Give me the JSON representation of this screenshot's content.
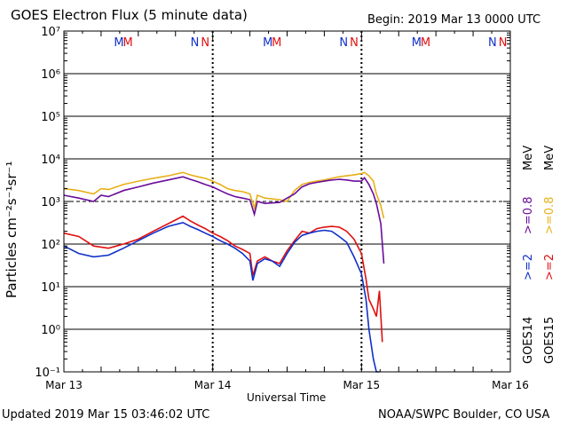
{
  "header": {
    "title": "GOES Electron Flux (5 minute data)",
    "begin": "Begin: 2019 Mar 13 0000 UTC"
  },
  "footer": {
    "updated": "Updated 2019 Mar 15 03:46:02 UTC",
    "credit": "NOAA/SWPC Boulder, CO USA"
  },
  "legend": {
    "goes14": "GOES14",
    "goes15": "GOES15",
    "goes14_2mev": ">=2",
    "goes15_2mev": ">=2",
    "goes14_08mev": ">=0.8",
    "goes15_08mev": ">=0.8",
    "unit": "MeV",
    "unit2": "MeV"
  },
  "colors": {
    "goes14_2": "#1030c8",
    "goes15_2": "#e01010",
    "goes14_08": "#6a0c9a",
    "goes15_08": "#e8b018",
    "axis": "#000000"
  },
  "chart_data": {
    "type": "line",
    "title": "GOES Electron Flux (5 minute data)",
    "xlabel": "Universal Time",
    "ylabel": "Particles cm⁻²s⁻¹sr⁻¹",
    "yscale": "log",
    "ylim": [
      0.1,
      10000000
    ],
    "xlim_days": [
      0,
      3
    ],
    "xticks": [
      "Mar 13",
      "Mar 14",
      "Mar 15",
      "Mar 16"
    ],
    "yticks": [
      "10⁷",
      "10⁶",
      "10⁵",
      "10⁴",
      "10³",
      "10²",
      "10¹",
      "10⁰",
      "10⁻¹"
    ],
    "alert_threshold": 1000,
    "markers": [
      {
        "label": "M",
        "series": "goes14",
        "day": 0.37
      },
      {
        "label": "M",
        "series": "goes15",
        "day": 0.43
      },
      {
        "label": "N",
        "series": "goes14",
        "day": 0.88
      },
      {
        "label": "N",
        "series": "goes15",
        "day": 0.95
      },
      {
        "label": "M",
        "series": "goes14",
        "day": 1.37
      },
      {
        "label": "M",
        "series": "goes15",
        "day": 1.43
      },
      {
        "label": "N",
        "series": "goes14",
        "day": 1.88
      },
      {
        "label": "N",
        "series": "goes15",
        "day": 1.95
      },
      {
        "label": "M",
        "series": "goes14",
        "day": 2.37
      },
      {
        "label": "M",
        "series": "goes15",
        "day": 2.43
      },
      {
        "label": "N",
        "series": "goes14",
        "day": 2.88
      },
      {
        "label": "N",
        "series": "goes15",
        "day": 2.95
      }
    ],
    "eclipse_days": [
      1.0,
      2.0
    ],
    "series": [
      {
        "name": "GOES15 >=0.8 MeV",
        "color": "#e8b018",
        "x": [
          0.0,
          0.1,
          0.2,
          0.25,
          0.3,
          0.4,
          0.5,
          0.6,
          0.7,
          0.8,
          0.85,
          0.9,
          0.95,
          1.0,
          1.05,
          1.1,
          1.15,
          1.2,
          1.25,
          1.28,
          1.3,
          1.35,
          1.45,
          1.5,
          1.55,
          1.6,
          1.65,
          1.7,
          1.75,
          1.8,
          1.85,
          1.9,
          1.95,
          2.0,
          2.02,
          2.05,
          2.08,
          2.1,
          2.13,
          2.15
        ],
        "y": [
          2000,
          1800,
          1500,
          2000,
          1900,
          2500,
          3000,
          3500,
          4000,
          4800,
          4200,
          3800,
          3500,
          3000,
          2500,
          2000,
          1800,
          1700,
          1500,
          700,
          1400,
          1200,
          1100,
          1000,
          1800,
          2500,
          2800,
          3000,
          3200,
          3500,
          3800,
          4000,
          4200,
          4500,
          4800,
          4000,
          3000,
          1500,
          800,
          400
        ]
      },
      {
        "name": "GOES14 >=0.8 MeV",
        "color": "#6a0c9a",
        "x": [
          0.0,
          0.1,
          0.2,
          0.25,
          0.3,
          0.4,
          0.5,
          0.6,
          0.7,
          0.8,
          0.85,
          0.9,
          0.95,
          1.0,
          1.05,
          1.1,
          1.15,
          1.2,
          1.25,
          1.28,
          1.3,
          1.35,
          1.45,
          1.5,
          1.55,
          1.6,
          1.65,
          1.7,
          1.75,
          1.8,
          1.85,
          1.9,
          1.95,
          2.0,
          2.02,
          2.05,
          2.08,
          2.1,
          2.13,
          2.15
        ],
        "y": [
          1400,
          1200,
          1000,
          1400,
          1300,
          1800,
          2200,
          2700,
          3200,
          3800,
          3300,
          2900,
          2500,
          2200,
          1800,
          1500,
          1300,
          1200,
          1100,
          500,
          1000,
          900,
          950,
          1200,
          1500,
          2200,
          2600,
          2800,
          3000,
          3200,
          3300,
          3200,
          3000,
          3000,
          3600,
          2500,
          1500,
          900,
          300,
          35
        ]
      },
      {
        "name": "GOES15 >=2 MeV",
        "color": "#e01010",
        "x": [
          0.0,
          0.1,
          0.2,
          0.3,
          0.4,
          0.5,
          0.6,
          0.7,
          0.8,
          0.85,
          0.9,
          0.95,
          1.0,
          1.05,
          1.1,
          1.15,
          1.2,
          1.25,
          1.27,
          1.3,
          1.35,
          1.4,
          1.45,
          1.5,
          1.55,
          1.6,
          1.65,
          1.7,
          1.75,
          1.8,
          1.85,
          1.9,
          1.95,
          2.0,
          2.03,
          2.05,
          2.08,
          2.1,
          2.12,
          2.14
        ],
        "y": [
          180,
          150,
          90,
          80,
          100,
          130,
          200,
          300,
          450,
          350,
          280,
          230,
          180,
          150,
          120,
          90,
          75,
          60,
          18,
          40,
          50,
          40,
          35,
          70,
          120,
          200,
          180,
          230,
          250,
          260,
          250,
          200,
          130,
          60,
          15,
          5,
          3,
          2,
          8,
          0.5
        ]
      },
      {
        "name": "GOES14 >=2 MeV",
        "color": "#1030c8",
        "x": [
          0.0,
          0.1,
          0.2,
          0.3,
          0.4,
          0.5,
          0.6,
          0.7,
          0.8,
          0.85,
          0.9,
          0.95,
          1.0,
          1.05,
          1.1,
          1.15,
          1.2,
          1.25,
          1.27,
          1.3,
          1.35,
          1.4,
          1.45,
          1.5,
          1.55,
          1.6,
          1.65,
          1.7,
          1.75,
          1.8,
          1.85,
          1.9,
          1.95,
          2.0,
          2.03,
          2.05,
          2.08,
          2.1,
          2.12
        ],
        "y": [
          90,
          60,
          50,
          55,
          80,
          120,
          180,
          260,
          320,
          260,
          220,
          180,
          150,
          120,
          100,
          80,
          60,
          40,
          14,
          35,
          45,
          40,
          30,
          60,
          110,
          160,
          180,
          200,
          210,
          200,
          150,
          110,
          50,
          20,
          5,
          1,
          0.2,
          0.1,
          0.1
        ]
      }
    ]
  }
}
